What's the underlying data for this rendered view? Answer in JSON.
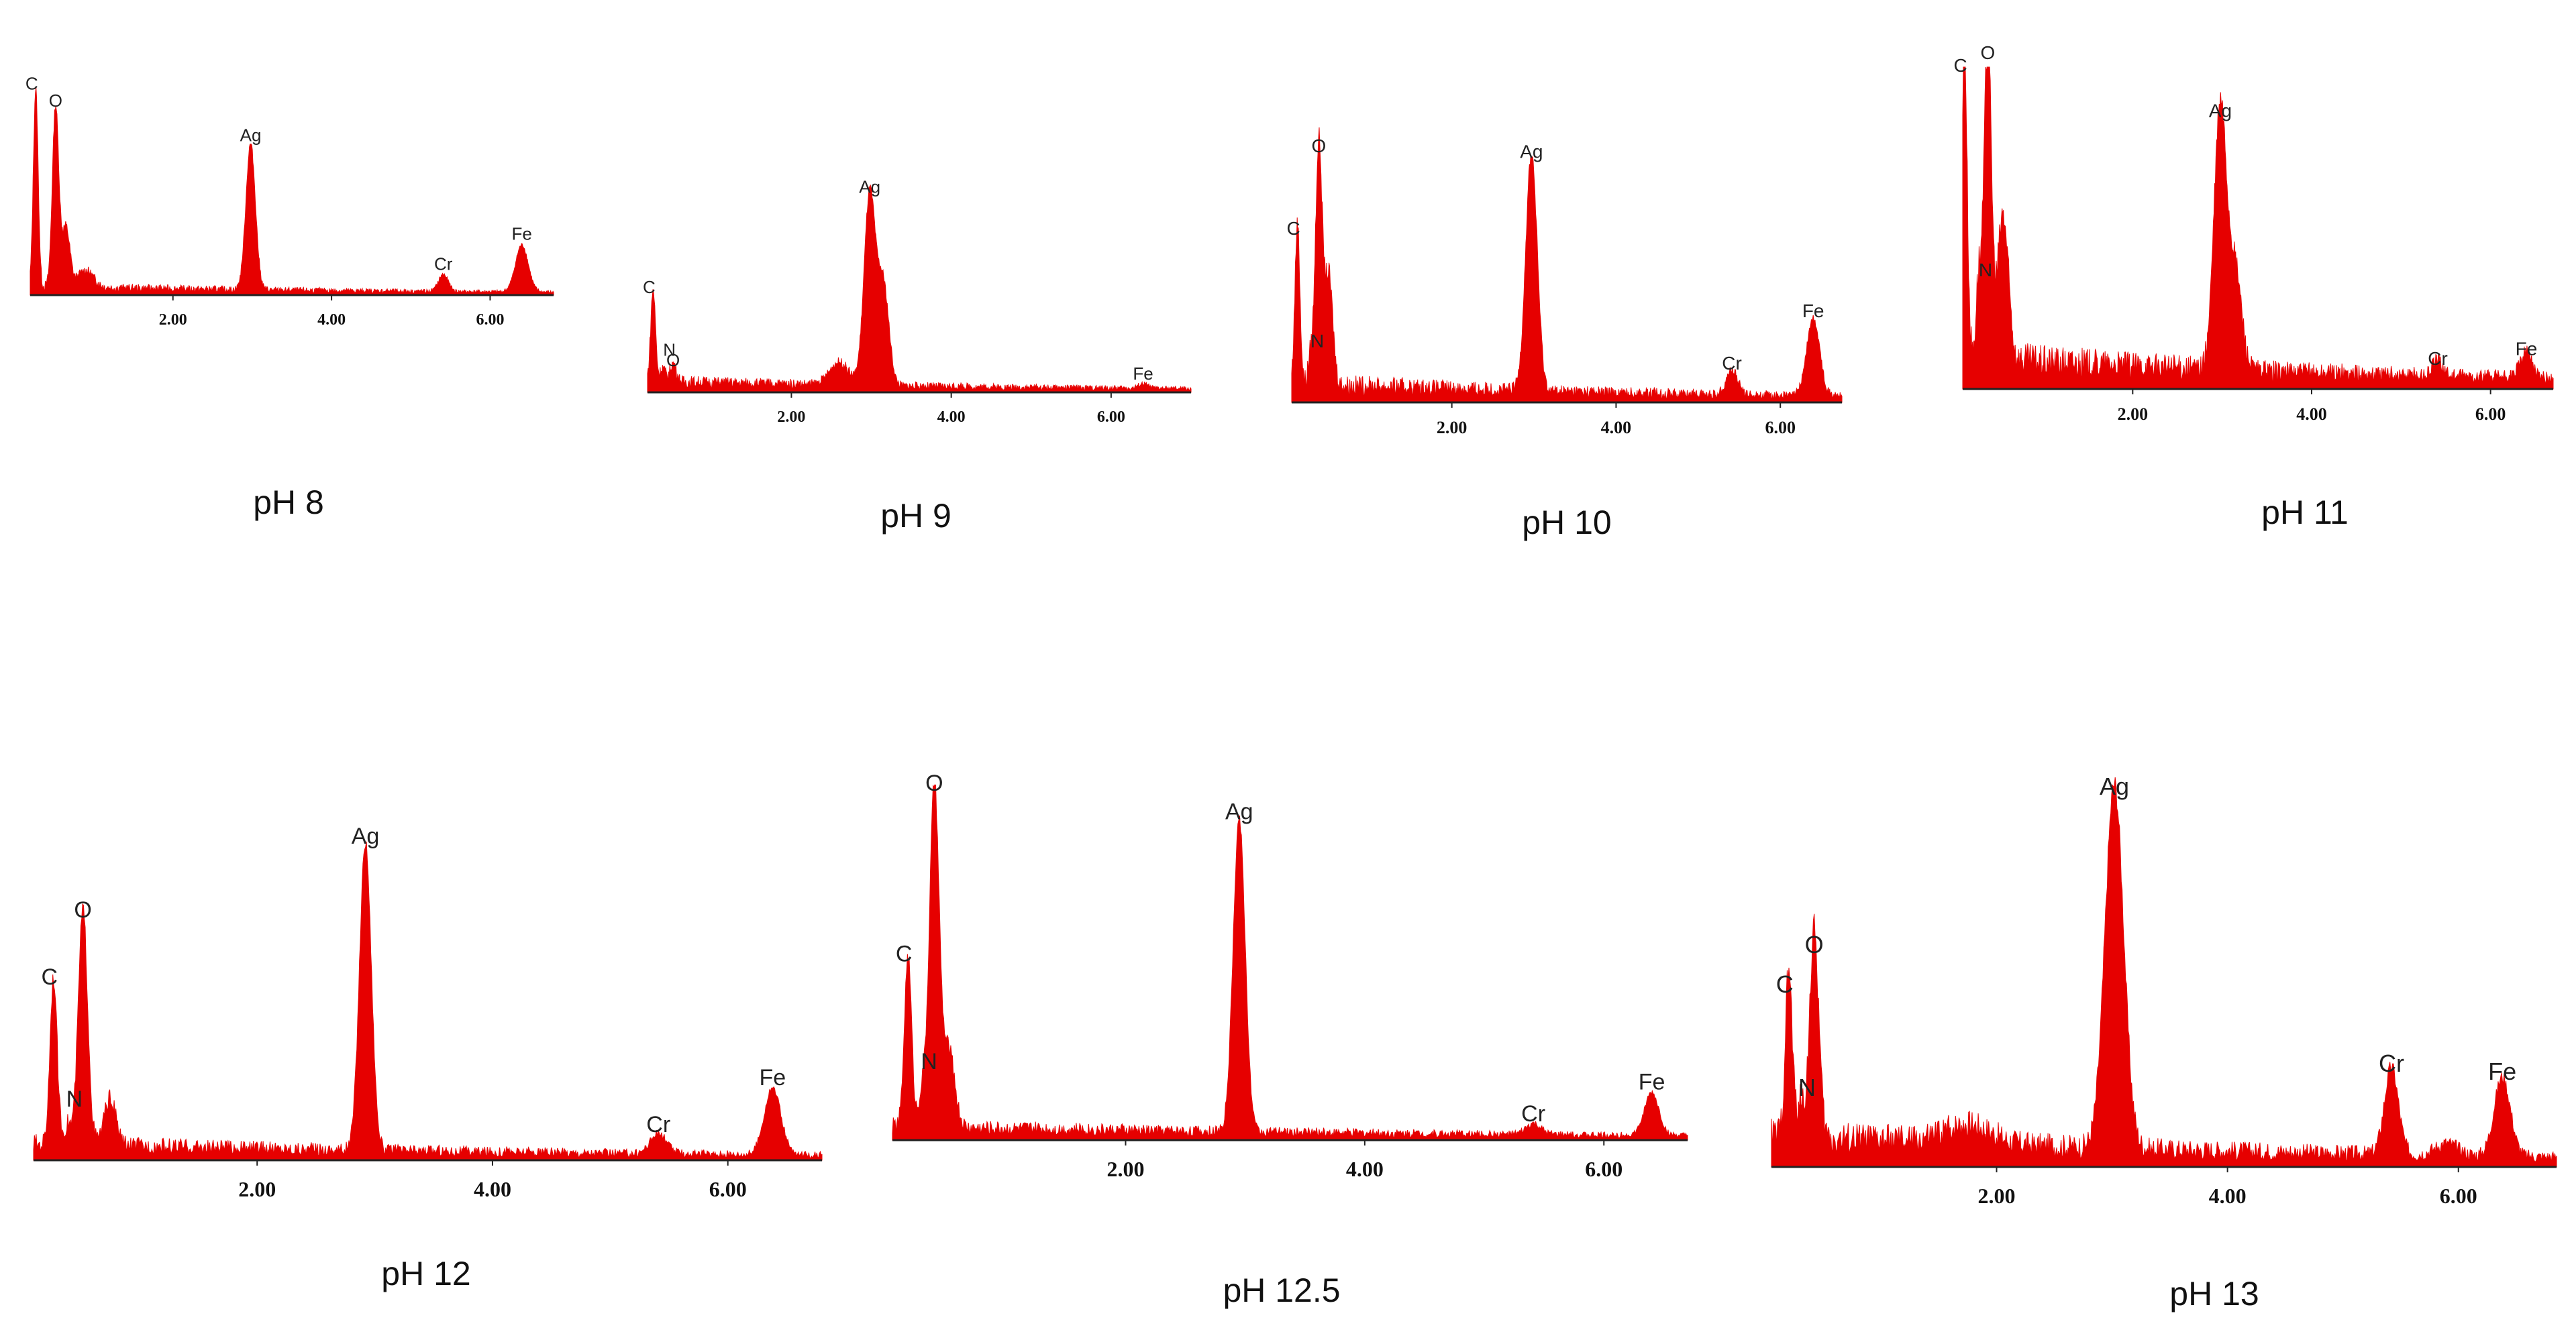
{
  "figure": {
    "colors": {
      "spectrum": "#e60000",
      "axis": "#222222"
    }
  },
  "chart_data": [
    {
      "type": "area",
      "title": "pH 8",
      "xlabel": "",
      "ylabel": "",
      "xlim": [
        0.2,
        6.8
      ],
      "ylim": [
        0,
        100
      ],
      "x_ticks": [
        "2.00",
        "4.00",
        "6.00"
      ],
      "background": 4,
      "peaks": [
        {
          "element": "C",
          "x": 0.27,
          "height": 92,
          "width": 0.03
        },
        {
          "element": "O",
          "x": 0.52,
          "height": 84,
          "width": 0.04
        },
        {
          "element": "Ag",
          "x": 2.98,
          "height": 68,
          "width": 0.06
        },
        {
          "element": "Cr",
          "x": 5.41,
          "height": 8,
          "width": 0.06
        },
        {
          "element": "Fe",
          "x": 6.4,
          "height": 22,
          "width": 0.08
        }
      ],
      "shoulders": [
        {
          "x": 0.65,
          "height": 28,
          "width": 0.05
        },
        {
          "x": 0.9,
          "height": 8,
          "width": 0.1
        }
      ]
    },
    {
      "type": "area",
      "title": "pH 9",
      "xlabel": "",
      "ylabel": "",
      "xlim": [
        0.2,
        7.0
      ],
      "ylim": [
        0,
        100
      ],
      "x_ticks": [
        "2.00",
        "4.00",
        "6.00"
      ],
      "background": 5,
      "peaks": [
        {
          "element": "C",
          "x": 0.27,
          "height": 40,
          "width": 0.03
        },
        {
          "element": "O",
          "x": 0.52,
          "height": 8,
          "width": 0.04
        },
        {
          "element": "N",
          "x": 0.39,
          "height": 6,
          "width": 0.03
        },
        {
          "element": "Ag",
          "x": 2.98,
          "height": 84,
          "width": 0.07
        },
        {
          "element": "Fe",
          "x": 6.4,
          "height": 2,
          "width": 0.06
        }
      ],
      "shoulders": [
        {
          "x": 3.15,
          "height": 44,
          "width": 0.07
        },
        {
          "x": 2.6,
          "height": 10,
          "width": 0.12
        }
      ]
    },
    {
      "type": "area",
      "title": "pH 10",
      "xlabel": "",
      "ylabel": "",
      "xlim": [
        0.05,
        6.75
      ],
      "ylim": [
        0,
        100
      ],
      "x_ticks": [
        "2.00",
        "4.00",
        "6.00"
      ],
      "background": 7,
      "peaks": [
        {
          "element": "C",
          "x": 0.12,
          "height": 58,
          "width": 0.03
        },
        {
          "element": "N",
          "x": 0.28,
          "height": 10,
          "width": 0.03
        },
        {
          "element": "O",
          "x": 0.38,
          "height": 88,
          "width": 0.04
        },
        {
          "element": "Ag",
          "x": 2.97,
          "height": 86,
          "width": 0.07
        },
        {
          "element": "Cr",
          "x": 5.41,
          "height": 9,
          "width": 0.07
        },
        {
          "element": "Fe",
          "x": 6.4,
          "height": 28,
          "width": 0.08
        }
      ],
      "shoulders": [
        {
          "x": 0.5,
          "height": 40,
          "width": 0.05
        }
      ]
    },
    {
      "type": "area",
      "title": "pH 11",
      "xlabel": "",
      "ylabel": "",
      "xlim": [
        0.1,
        6.7
      ],
      "ylim": [
        0,
        100
      ],
      "x_ticks": [
        "2.00",
        "4.00",
        "6.00"
      ],
      "background": 10,
      "peaks": [
        {
          "element": "C",
          "x": 0.12,
          "height": 96,
          "width": 0.03
        },
        {
          "element": "N",
          "x": 0.28,
          "height": 25,
          "width": 0.03
        },
        {
          "element": "O",
          "x": 0.38,
          "height": 100,
          "width": 0.04
        },
        {
          "element": "Ag",
          "x": 2.98,
          "height": 82,
          "width": 0.07
        },
        {
          "element": "Cr",
          "x": 5.41,
          "height": 5,
          "width": 0.06
        },
        {
          "element": "Fe",
          "x": 6.4,
          "height": 8,
          "width": 0.07
        }
      ],
      "shoulders": [
        {
          "x": 3.15,
          "height": 30,
          "width": 0.07
        },
        {
          "x": 0.55,
          "height": 45,
          "width": 0.06
        }
      ]
    },
    {
      "type": "area",
      "title": "pH 12",
      "xlabel": "",
      "ylabel": "",
      "xlim": [
        0.1,
        6.8
      ],
      "ylim": [
        0,
        100
      ],
      "x_ticks": [
        "2.00",
        "4.00",
        "6.00"
      ],
      "background": 5,
      "peaks": [
        {
          "element": "C",
          "x": 0.27,
          "height": 50,
          "width": 0.03
        },
        {
          "element": "N",
          "x": 0.39,
          "height": 6,
          "width": 0.03
        },
        {
          "element": "O",
          "x": 0.52,
          "height": 70,
          "width": 0.04
        },
        {
          "element": "Ag",
          "x": 2.92,
          "height": 92,
          "width": 0.05
        },
        {
          "element": "Cr",
          "x": 5.41,
          "height": 6,
          "width": 0.07
        },
        {
          "element": "Fe",
          "x": 6.38,
          "height": 20,
          "width": 0.07
        }
      ],
      "shoulders": [
        {
          "x": 0.75,
          "height": 14,
          "width": 0.05
        }
      ]
    },
    {
      "type": "area",
      "title": "pH 12.5",
      "xlabel": "",
      "ylabel": "",
      "xlim": [
        0.05,
        6.7
      ],
      "ylim": [
        0,
        100
      ],
      "x_ticks": [
        "2.00",
        "4.00",
        "6.00"
      ],
      "background": 4,
      "peaks": [
        {
          "element": "C",
          "x": 0.18,
          "height": 48,
          "width": 0.03
        },
        {
          "element": "N",
          "x": 0.3,
          "height": 10,
          "width": 0.03
        },
        {
          "element": "O",
          "x": 0.4,
          "height": 96,
          "width": 0.04
        },
        {
          "element": "Ag",
          "x": 2.95,
          "height": 88,
          "width": 0.05
        },
        {
          "element": "Cr",
          "x": 5.41,
          "height": 3,
          "width": 0.06
        },
        {
          "element": "Fe",
          "x": 6.4,
          "height": 12,
          "width": 0.06
        }
      ],
      "shoulders": [
        {
          "x": 0.52,
          "height": 22,
          "width": 0.05
        }
      ]
    },
    {
      "type": "area",
      "title": "pH 13",
      "xlabel": "",
      "ylabel": "",
      "xlim": [
        0.05,
        6.85
      ],
      "ylim": [
        0,
        100
      ],
      "x_ticks": [
        "2.00",
        "4.00",
        "6.00"
      ],
      "background": 8,
      "peaks": [
        {
          "element": "C",
          "x": 0.2,
          "height": 42,
          "width": 0.03
        },
        {
          "element": "N",
          "x": 0.3,
          "height": 8,
          "width": 0.03
        },
        {
          "element": "O",
          "x": 0.42,
          "height": 52,
          "width": 0.04
        },
        {
          "element": "Ag",
          "x": 3.02,
          "height": 92,
          "width": 0.08
        },
        {
          "element": "Cr",
          "x": 5.42,
          "height": 22,
          "width": 0.06
        },
        {
          "element": "Fe",
          "x": 6.38,
          "height": 20,
          "width": 0.07
        }
      ],
      "shoulders": [
        {
          "x": 1.75,
          "height": 5,
          "width": 0.2
        },
        {
          "x": 5.9,
          "height": 3,
          "width": 0.1
        }
      ]
    }
  ]
}
